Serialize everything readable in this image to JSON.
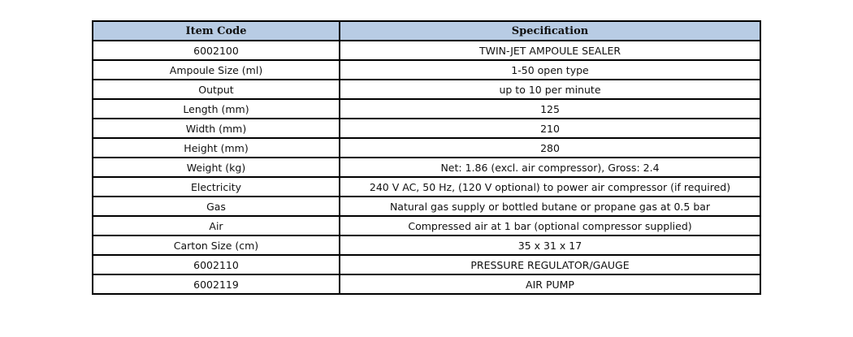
{
  "headers": [
    "Item Code",
    "Specification"
  ],
  "rows": [
    [
      "6002100",
      "TWIN-JET AMPOULE SEALER"
    ],
    [
      "Ampoule Size (ml)",
      "1-50 open type"
    ],
    [
      "Output",
      "up to 10 per minute"
    ],
    [
      "Length (mm)",
      "125"
    ],
    [
      "Width (mm)",
      "210"
    ],
    [
      "Height (mm)",
      "280"
    ],
    [
      "Weight (kg)",
      "Net: 1.86 (excl. air compressor), Gross: 2.4"
    ],
    [
      "Electricity",
      "240 V AC, 50 Hz, (120 V optional) to power air compressor (if required)"
    ],
    [
      "Gas",
      "Natural gas supply or bottled butane or propane gas at 0.5 bar"
    ],
    [
      "Air",
      "Compressed air at 1 bar (optional compressor supplied)"
    ],
    [
      "Carton Size (cm)",
      "35 x 31 x 17"
    ],
    [
      "6002110",
      "PRESSURE REGULATOR/GAUGE"
    ],
    [
      "6002119",
      "AIR PUMP"
    ]
  ],
  "colors": {
    "header_bg": "#b8cce4",
    "border": "#000000"
  }
}
